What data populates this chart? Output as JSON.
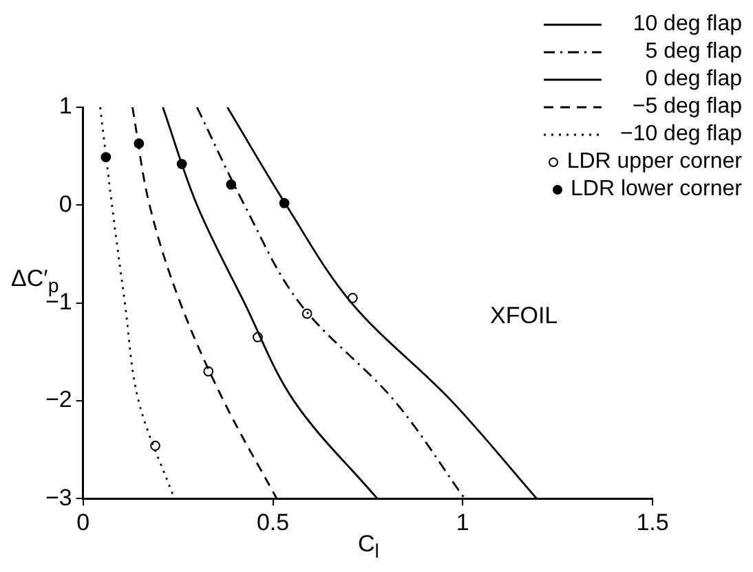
{
  "chart_data": {
    "type": "line",
    "xlabel": "C$_{l}$",
    "ylabel": "ΔC′$_{p}$",
    "xlim": [
      0,
      1.5
    ],
    "ylim": [
      -3,
      1
    ],
    "xticks": [
      0,
      0.5,
      1,
      1.5
    ],
    "yticks": [
      -3,
      -2,
      -1,
      0,
      1
    ],
    "grid": false,
    "legend": "top right",
    "marker": "none",
    "annotations": [
      "XFOIL"
    ],
    "series": [
      {
        "name": "10 deg flap",
        "line_style": "solid",
        "color": "#000000",
        "x": [
          0.38,
          0.535,
          0.707,
          0.97,
          1.195
        ],
        "values": [
          1,
          0,
          -1,
          -2,
          -3
        ]
      },
      {
        "name": "5 deg flap",
        "line_style": "dashdot",
        "color": "#000000",
        "x": [
          0.3,
          0.425,
          0.57,
          0.82,
          1.005
        ],
        "values": [
          1,
          0,
          -1,
          -2,
          -3
        ]
      },
      {
        "name": "0 deg flap",
        "line_style": "solid",
        "color": "#000000",
        "x": [
          0.21,
          0.3,
          0.425,
          0.555,
          0.775
        ],
        "values": [
          1,
          0,
          -1,
          -2,
          -3
        ]
      },
      {
        "name": "−5 deg flap",
        "line_style": "dashed",
        "color": "#000000",
        "x": [
          0.13,
          0.175,
          0.256,
          0.37,
          0.51
        ],
        "values": [
          1,
          0,
          -1,
          -2,
          -3
        ]
      },
      {
        "name": "−10 deg flap",
        "line_style": "dotted",
        "color": "#000000",
        "x": [
          0.045,
          0.076,
          0.11,
          0.146,
          0.24
        ],
        "values": [
          1,
          0,
          -1,
          -2,
          -3
        ]
      },
      {
        "name": "LDR upper corner",
        "type": "scatter",
        "marker": "circle",
        "color": "#ffffff",
        "x": [
          0.71,
          0.59,
          0.46,
          0.33,
          0.19
        ],
        "values": [
          -0.95,
          -1.11,
          -1.35,
          -1.7,
          -2.46
        ]
      },
      {
        "name": "LDR lower corner",
        "type": "scatter",
        "marker": "circle",
        "color": "#000000",
        "x": [
          0.53,
          0.39,
          0.26,
          0.147,
          0.06
        ],
        "values": [
          0.02,
          0.21,
          0.42,
          0.63,
          0.49
        ]
      }
    ]
  }
}
